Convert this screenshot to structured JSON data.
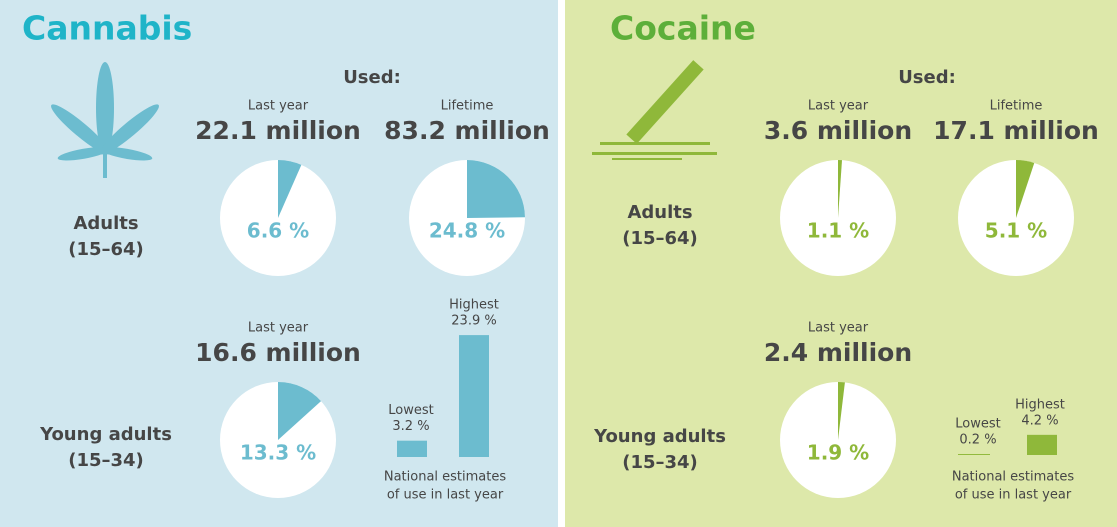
{
  "panels": [
    {
      "title": "Cannabis",
      "used_label": "Used:",
      "adults": {
        "label": "Adults",
        "age": "(15–64)",
        "last_year": {
          "label": "Last year",
          "count": "22.1 million",
          "percent": 6.6,
          "percent_label": "6.6 %"
        },
        "lifetime": {
          "label": "Lifetime",
          "count": "83.2 million",
          "percent": 24.8,
          "percent_label": "24.8 %"
        }
      },
      "young_adults": {
        "label": "Young adults",
        "age": "(15–34)",
        "last_year": {
          "label": "Last year",
          "count": "16.6 million",
          "percent": 13.3,
          "percent_label": "13.3 %"
        },
        "lowest": {
          "label": "Lowest",
          "value": 3.2,
          "value_label": "3.2 %"
        },
        "highest": {
          "label": "Highest",
          "value": 23.9,
          "value_label": "23.9 %"
        },
        "note": [
          "National estimates",
          "of use in last year"
        ]
      }
    },
    {
      "title": "Cocaine",
      "used_label": "Used:",
      "adults": {
        "label": "Adults",
        "age": "(15–64)",
        "last_year": {
          "label": "Last year",
          "count": "3.6 million",
          "percent": 1.1,
          "percent_label": "1.1 %"
        },
        "lifetime": {
          "label": "Lifetime",
          "count": "17.1 million",
          "percent": 5.1,
          "percent_label": "5.1 %"
        }
      },
      "young_adults": {
        "label": "Young adults",
        "age": "(15–34)",
        "last_year": {
          "label": "Last year",
          "count": "2.4 million",
          "percent": 1.9,
          "percent_label": "1.9 %"
        },
        "lowest": {
          "label": "Lowest",
          "value": 0.2,
          "value_label": "0.2 %"
        },
        "highest": {
          "label": "Highest",
          "value": 4.2,
          "value_label": "4.2 %"
        },
        "note": [
          "National estimates",
          "of use in last year"
        ]
      }
    }
  ]
}
